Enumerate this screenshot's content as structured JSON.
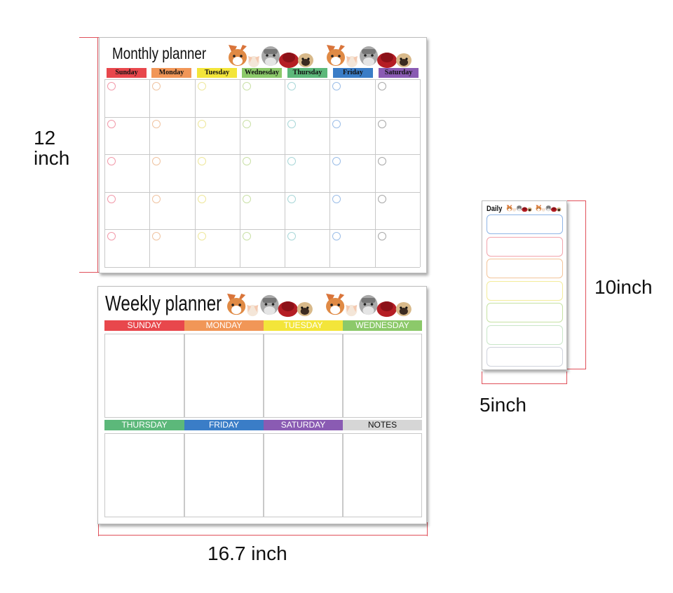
{
  "monthly": {
    "title": "Monthly planner",
    "days": [
      "Sunday",
      "Monday",
      "Tuesday",
      "Wednesday",
      "Thursday",
      "Friday",
      "Saturday"
    ],
    "day_colors": [
      "#e8474c",
      "#f19657",
      "#f3e53a",
      "#8cc96a",
      "#5cb87a",
      "#3a7dc7",
      "#8a5bb3"
    ],
    "circle_colors": [
      "#f29aaa",
      "#efc3a0",
      "#eee79a",
      "#c9e0a6",
      "#a9d7d8",
      "#9bbde7",
      "#a8a8a8"
    ]
  },
  "weekly": {
    "title": "Weekly planner",
    "days": [
      "SUNDAY",
      "MONDAY",
      "TUESDAY",
      "WEDNESDAY",
      "THURSDAY",
      "FRIDAY",
      "SATURDAY",
      "NOTES"
    ],
    "day_colors": [
      "#e8474c",
      "#f19657",
      "#f3e53a",
      "#8cc96a",
      "#5cb87a",
      "#3a7dc7",
      "#8a5bb3",
      "#d6d6d6"
    ]
  },
  "daily": {
    "title": "Daily",
    "box_colors": [
      "#8fb5e6",
      "#f2a4ac",
      "#f3c59a",
      "#f3ec9a",
      "#c6e2a3",
      "#c9e6c8",
      "#cfd3dc"
    ]
  },
  "dimensions": {
    "monthly_height": "12\ninch",
    "planner_width": "16.7 inch",
    "daily_height": "10inch",
    "daily_width": "5inch"
  },
  "icons": [
    "dog-illustration-icon"
  ]
}
